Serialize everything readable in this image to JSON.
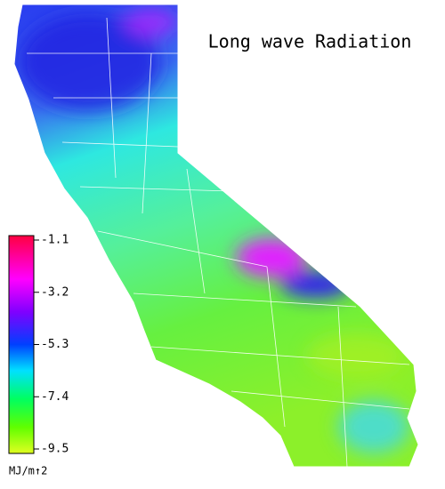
{
  "title": "Long wave Radiation",
  "colorbar": {
    "lim": [
      -9.5,
      -1.1
    ],
    "ticks": [
      -1.1,
      -3.2,
      -5.3,
      -7.4,
      -9.5
    ],
    "unit_label": "MJ/m↑2"
  }
}
